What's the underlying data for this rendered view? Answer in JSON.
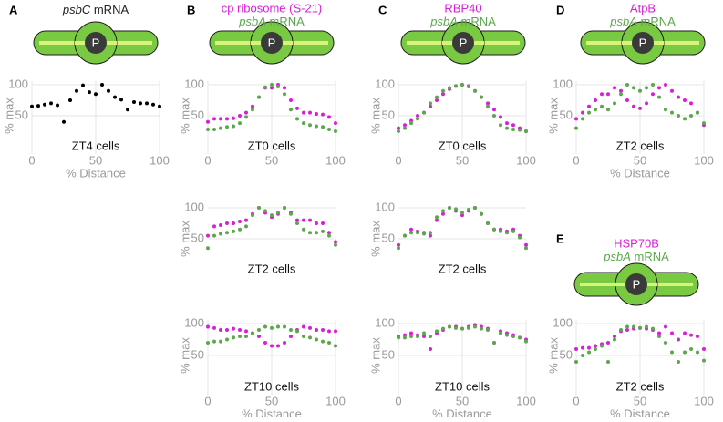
{
  "chart_data": [
    {
      "type": "scatter",
      "panel": "A",
      "icon_label": "P",
      "subtitle": "ZT4 cells",
      "xlabel": "% Distance",
      "ylabel": "% max",
      "xlim": [
        0,
        100
      ],
      "ylim": [
        0,
        100
      ],
      "xticks": [
        0,
        50,
        100
      ],
      "yticks": [
        50,
        100
      ],
      "grid": true,
      "x": [
        0,
        5,
        10,
        15,
        20,
        25,
        30,
        35,
        40,
        45,
        50,
        55,
        60,
        65,
        70,
        75,
        80,
        85,
        90,
        95,
        100
      ],
      "series": [
        {
          "name": "psbC mRNA",
          "italic_first_word": true,
          "color": "#000000",
          "values": [
            65,
            66,
            68,
            70,
            67,
            40,
            75,
            90,
            99,
            88,
            85,
            100,
            90,
            80,
            76,
            60,
            72,
            70,
            70,
            68,
            65
          ]
        }
      ]
    },
    {
      "type": "scatter",
      "panel": "B",
      "icon_label": "P",
      "subtitle": "ZT0 cells",
      "ylabel": "% max",
      "xlim": [
        0,
        100
      ],
      "ylim": [
        0,
        100
      ],
      "xticks": [
        0,
        50,
        100
      ],
      "yticks": [
        50,
        100
      ],
      "grid": true,
      "x": [
        0,
        5,
        10,
        15,
        20,
        25,
        30,
        35,
        40,
        45,
        50,
        55,
        60,
        65,
        70,
        75,
        80,
        85,
        90,
        95,
        100
      ],
      "series": [
        {
          "name": "cp ribosome (S-21)",
          "italic_first_word": false,
          "color": "#d61fd6",
          "values": [
            40,
            45,
            45,
            45,
            46,
            50,
            55,
            65,
            80,
            95,
            95,
            100,
            95,
            75,
            62,
            55,
            55,
            53,
            52,
            48,
            38
          ]
        },
        {
          "name": "psbA mRNA",
          "italic_first_word": true,
          "color": "#5aa84a",
          "values": [
            28,
            28,
            30,
            32,
            33,
            38,
            48,
            60,
            80,
            96,
            100,
            97,
            85,
            60,
            45,
            38,
            35,
            33,
            32,
            28,
            25
          ]
        }
      ]
    },
    {
      "type": "scatter",
      "subtitle": "ZT2 cells",
      "ylabel": "% max",
      "xlim": [
        0,
        100
      ],
      "ylim": [
        0,
        100
      ],
      "yticks": [
        50,
        100
      ],
      "grid": true,
      "x": [
        0,
        5,
        10,
        15,
        20,
        25,
        30,
        35,
        40,
        45,
        50,
        55,
        60,
        65,
        70,
        75,
        80,
        85,
        90,
        95,
        100
      ],
      "series": [
        {
          "color": "#d61fd6",
          "values": [
            55,
            70,
            72,
            75,
            75,
            78,
            80,
            90,
            100,
            92,
            85,
            90,
            100,
            92,
            80,
            80,
            80,
            75,
            75,
            60,
            45
          ]
        },
        {
          "color": "#5aa84a",
          "values": [
            35,
            55,
            58,
            60,
            62,
            65,
            70,
            88,
            100,
            95,
            88,
            92,
            100,
            90,
            75,
            65,
            60,
            60,
            62,
            55,
            40
          ]
        }
      ]
    },
    {
      "type": "scatter",
      "subtitle": "ZT10 cells",
      "xlabel": "% Distance",
      "ylabel": "% max",
      "xlim": [
        0,
        100
      ],
      "ylim": [
        0,
        100
      ],
      "xticks": [
        0,
        50,
        100
      ],
      "yticks": [
        50,
        100
      ],
      "grid": true,
      "x": [
        0,
        5,
        10,
        15,
        20,
        25,
        30,
        35,
        40,
        45,
        50,
        55,
        60,
        65,
        70,
        75,
        80,
        85,
        90,
        95,
        100
      ],
      "series": [
        {
          "color": "#d61fd6",
          "values": [
            95,
            93,
            90,
            90,
            92,
            90,
            88,
            85,
            80,
            70,
            65,
            65,
            70,
            80,
            90,
            95,
            93,
            90,
            90,
            88,
            88
          ]
        },
        {
          "color": "#5aa84a",
          "values": [
            70,
            72,
            72,
            75,
            78,
            80,
            80,
            85,
            90,
            95,
            93,
            95,
            95,
            90,
            88,
            80,
            78,
            75,
            72,
            70,
            65
          ]
        }
      ]
    },
    {
      "type": "scatter",
      "panel": "C",
      "icon_label": "P",
      "subtitle": "ZT0 cells",
      "ylabel": "% max",
      "xlim": [
        0,
        100
      ],
      "ylim": [
        0,
        100
      ],
      "xticks": [
        0,
        50,
        100
      ],
      "yticks": [
        50,
        100
      ],
      "grid": true,
      "x": [
        0,
        5,
        10,
        15,
        20,
        25,
        30,
        35,
        40,
        45,
        50,
        55,
        60,
        65,
        70,
        75,
        80,
        85,
        90,
        95,
        100
      ],
      "series": [
        {
          "name": "RBP40",
          "italic_first_word": false,
          "color": "#d61fd6",
          "values": [
            30,
            35,
            42,
            50,
            55,
            65,
            75,
            85,
            93,
            98,
            100,
            98,
            90,
            80,
            70,
            60,
            48,
            38,
            35,
            30,
            25
          ]
        },
        {
          "name": "psbA mRNA",
          "italic_first_word": true,
          "color": "#5aa84a",
          "values": [
            25,
            30,
            38,
            45,
            55,
            70,
            80,
            90,
            95,
            98,
            100,
            97,
            90,
            80,
            65,
            50,
            35,
            30,
            28,
            27,
            25
          ]
        }
      ]
    },
    {
      "type": "scatter",
      "subtitle": "ZT2 cells",
      "ylabel": "% max",
      "xlim": [
        0,
        100
      ],
      "ylim": [
        0,
        100
      ],
      "yticks": [
        50,
        100
      ],
      "grid": true,
      "x": [
        0,
        5,
        10,
        15,
        20,
        25,
        30,
        35,
        40,
        45,
        50,
        55,
        60,
        65,
        70,
        75,
        80,
        85,
        90,
        95,
        100
      ],
      "series": [
        {
          "color": "#d61fd6",
          "values": [
            40,
            55,
            65,
            62,
            60,
            55,
            80,
            90,
            100,
            95,
            88,
            95,
            100,
            90,
            75,
            65,
            65,
            62,
            65,
            55,
            40
          ]
        },
        {
          "color": "#5aa84a",
          "values": [
            35,
            55,
            60,
            60,
            58,
            60,
            85,
            95,
            100,
            98,
            92,
            97,
            100,
            90,
            75,
            65,
            62,
            60,
            62,
            52,
            35
          ]
        }
      ]
    },
    {
      "type": "scatter",
      "subtitle": "ZT10 cells",
      "xlabel": "% Distance",
      "ylabel": "% max",
      "xlim": [
        0,
        100
      ],
      "ylim": [
        0,
        100
      ],
      "xticks": [
        0,
        50,
        100
      ],
      "yticks": [
        50,
        100
      ],
      "grid": true,
      "x": [
        0,
        5,
        10,
        15,
        20,
        25,
        30,
        35,
        40,
        45,
        50,
        55,
        60,
        65,
        70,
        75,
        80,
        85,
        90,
        95,
        100
      ],
      "series": [
        {
          "color": "#d61fd6",
          "values": [
            80,
            82,
            85,
            82,
            80,
            60,
            85,
            90,
            95,
            95,
            92,
            95,
            98,
            95,
            92,
            70,
            88,
            85,
            82,
            78,
            75
          ]
        },
        {
          "color": "#5aa84a",
          "values": [
            78,
            78,
            80,
            80,
            85,
            80,
            88,
            92,
            95,
            93,
            92,
            93,
            95,
            92,
            90,
            70,
            85,
            82,
            80,
            78,
            72
          ]
        }
      ]
    },
    {
      "type": "scatter",
      "panel": "D",
      "icon_label": "P",
      "subtitle": "ZT2 cells",
      "xlabel": "% Distance",
      "ylabel": "% max",
      "xlim": [
        0,
        100
      ],
      "ylim": [
        0,
        100
      ],
      "xticks": [
        0,
        50,
        100
      ],
      "yticks": [
        50,
        100
      ],
      "grid": true,
      "x": [
        0,
        5,
        10,
        15,
        20,
        25,
        30,
        35,
        40,
        45,
        50,
        55,
        60,
        65,
        70,
        75,
        80,
        85,
        90,
        95,
        100
      ],
      "series": [
        {
          "name": "AtpB",
          "italic_first_word": false,
          "color": "#d61fd6",
          "values": [
            45,
            55,
            65,
            75,
            85,
            85,
            95,
            90,
            75,
            65,
            62,
            70,
            85,
            95,
            100,
            90,
            80,
            75,
            70,
            55,
            35
          ]
        },
        {
          "name": "psbA mRNA",
          "italic_first_word": true,
          "color": "#5aa84a",
          "values": [
            30,
            45,
            55,
            60,
            65,
            60,
            70,
            85,
            100,
            95,
            90,
            95,
            100,
            80,
            60,
            55,
            50,
            45,
            50,
            55,
            38
          ]
        }
      ]
    },
    {
      "type": "scatter",
      "panel": "E",
      "icon_label": "P",
      "subtitle": "ZT2 cells",
      "xlabel": "% Distance",
      "ylabel": "% max",
      "xlim": [
        0,
        100
      ],
      "ylim": [
        0,
        100
      ],
      "xticks": [
        0,
        50,
        100
      ],
      "yticks": [
        50,
        100
      ],
      "grid": true,
      "x": [
        0,
        5,
        10,
        15,
        20,
        25,
        30,
        35,
        40,
        45,
        50,
        55,
        60,
        65,
        70,
        75,
        80,
        85,
        90,
        95,
        100
      ],
      "series": [
        {
          "name": "HSP70B",
          "italic_first_word": false,
          "color": "#d61fd6",
          "values": [
            60,
            62,
            62,
            65,
            68,
            70,
            80,
            88,
            90,
            92,
            93,
            92,
            90,
            85,
            95,
            85,
            75,
            85,
            82,
            80,
            60
          ]
        },
        {
          "name": "psbA mRNA",
          "italic_first_word": true,
          "color": "#5aa84a",
          "values": [
            40,
            50,
            55,
            60,
            65,
            40,
            75,
            90,
            95,
            95,
            93,
            95,
            92,
            80,
            70,
            55,
            40,
            55,
            60,
            55,
            42
          ]
        }
      ]
    }
  ]
}
